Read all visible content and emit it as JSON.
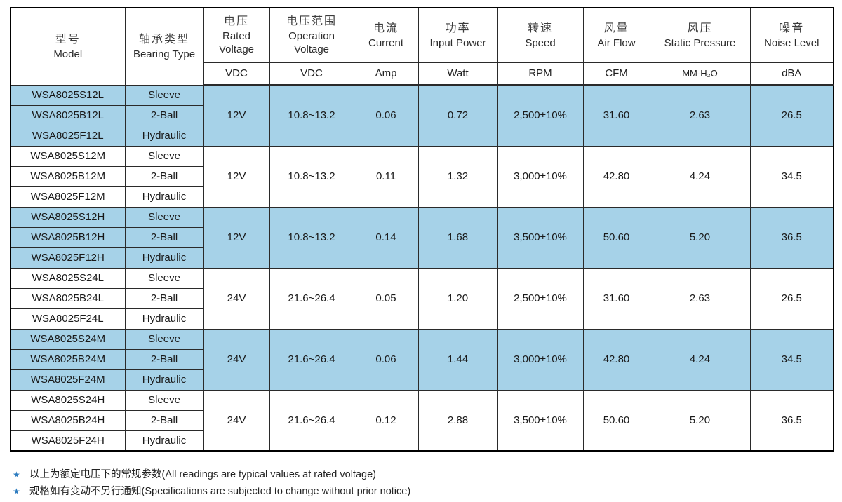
{
  "colors": {
    "highlight": "#a6d2e8",
    "border": "#2a2a2a",
    "outer_border": "#000000",
    "footnote_star": "#2f7dc0"
  },
  "table": {
    "columns": [
      {
        "cn": "型号",
        "en": "Model",
        "unit": ""
      },
      {
        "cn": "轴承类型",
        "en": "Bearing Type",
        "unit": ""
      },
      {
        "cn": "电压",
        "en": "Rated Voltage",
        "unit": "VDC"
      },
      {
        "cn": "电压范围",
        "en": "Operation Voltage",
        "unit": "VDC"
      },
      {
        "cn": "电流",
        "en": "Current",
        "unit": "Amp"
      },
      {
        "cn": "功率",
        "en": "Input Power",
        "unit": "Watt"
      },
      {
        "cn": "转速",
        "en": "Speed",
        "unit": "RPM"
      },
      {
        "cn": "风量",
        "en": "Air Flow",
        "unit": "CFM"
      },
      {
        "cn": "风压",
        "en": "Static Pressure",
        "unit": "MM-H₂O"
      },
      {
        "cn": "噪音",
        "en": "Noise Level",
        "unit": "dBA"
      }
    ],
    "value_keys": [
      "rated_voltage",
      "operation_voltage",
      "current",
      "input_power",
      "speed",
      "air_flow",
      "static_pressure",
      "noise_level"
    ],
    "groups": [
      {
        "highlighted": true,
        "rows": [
          {
            "model": "WSA8025S12L",
            "bearing": "Sleeve"
          },
          {
            "model": "WSA8025B12L",
            "bearing": "2-Ball"
          },
          {
            "model": "WSA8025F12L",
            "bearing": "Hydraulic"
          }
        ],
        "values": [
          "12V",
          "10.8~13.2",
          "0.06",
          "0.72",
          "2,500±10%",
          "31.60",
          "2.63",
          "26.5"
        ]
      },
      {
        "highlighted": false,
        "rows": [
          {
            "model": "WSA8025S12M",
            "bearing": "Sleeve"
          },
          {
            "model": "WSA8025B12M",
            "bearing": "2-Ball"
          },
          {
            "model": "WSA8025F12M",
            "bearing": "Hydraulic"
          }
        ],
        "values": [
          "12V",
          "10.8~13.2",
          "0.11",
          "1.32",
          "3,000±10%",
          "42.80",
          "4.24",
          "34.5"
        ]
      },
      {
        "highlighted": true,
        "rows": [
          {
            "model": "WSA8025S12H",
            "bearing": "Sleeve"
          },
          {
            "model": "WSA8025B12H",
            "bearing": "2-Ball"
          },
          {
            "model": "WSA8025F12H",
            "bearing": "Hydraulic"
          }
        ],
        "values": [
          "12V",
          "10.8~13.2",
          "0.14",
          "1.68",
          "3,500±10%",
          "50.60",
          "5.20",
          "36.5"
        ]
      },
      {
        "highlighted": false,
        "rows": [
          {
            "model": "WSA8025S24L",
            "bearing": "Sleeve"
          },
          {
            "model": "WSA8025B24L",
            "bearing": "2-Ball"
          },
          {
            "model": "WSA8025F24L",
            "bearing": "Hydraulic"
          }
        ],
        "values": [
          "24V",
          "21.6~26.4",
          "0.05",
          "1.20",
          "2,500±10%",
          "31.60",
          "2.63",
          "26.5"
        ]
      },
      {
        "highlighted": true,
        "rows": [
          {
            "model": "WSA8025S24M",
            "bearing": "Sleeve"
          },
          {
            "model": "WSA8025B24M",
            "bearing": "2-Ball"
          },
          {
            "model": "WSA8025F24M",
            "bearing": "Hydraulic"
          }
        ],
        "values": [
          "24V",
          "21.6~26.4",
          "0.06",
          "1.44",
          "3,000±10%",
          "42.80",
          "4.24",
          "34.5"
        ]
      },
      {
        "highlighted": false,
        "rows": [
          {
            "model": "WSA8025S24H",
            "bearing": "Sleeve"
          },
          {
            "model": "WSA8025B24H",
            "bearing": "2-Ball"
          },
          {
            "model": "WSA8025F24H",
            "bearing": "Hydraulic"
          }
        ],
        "values": [
          "24V",
          "21.6~26.4",
          "0.12",
          "2.88",
          "3,500±10%",
          "50.60",
          "5.20",
          "36.5"
        ]
      }
    ]
  },
  "footnotes": [
    {
      "marker": "★",
      "text": "以上为额定电压下的常规参数(All readings are typical values at rated voltage)"
    },
    {
      "marker": "★",
      "text": "规格如有变动不另行通知(Specifications are subjected to change without prior notice)"
    }
  ]
}
